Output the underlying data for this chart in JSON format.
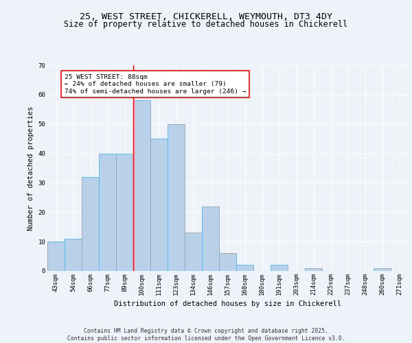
{
  "title1": "25, WEST STREET, CHICKERELL, WEYMOUTH, DT3 4DY",
  "title2": "Size of property relative to detached houses in Chickerell",
  "xlabel": "Distribution of detached houses by size in Chickerell",
  "ylabel": "Number of detached properties",
  "categories": [
    "43sqm",
    "54sqm",
    "66sqm",
    "77sqm",
    "89sqm",
    "100sqm",
    "111sqm",
    "123sqm",
    "134sqm",
    "146sqm",
    "157sqm",
    "168sqm",
    "180sqm",
    "191sqm",
    "203sqm",
    "214sqm",
    "225sqm",
    "237sqm",
    "248sqm",
    "260sqm",
    "271sqm"
  ],
  "values": [
    10,
    11,
    32,
    40,
    40,
    58,
    45,
    50,
    13,
    22,
    6,
    2,
    0,
    2,
    0,
    1,
    0,
    0,
    0,
    1,
    0
  ],
  "bar_color": "#b8d0e8",
  "bar_edge_color": "#6aaed6",
  "bar_width": 1.0,
  "annotation_text": "25 WEST STREET: 88sqm\n← 24% of detached houses are smaller (79)\n74% of semi-detached houses are larger (246) →",
  "annotation_box_color": "white",
  "annotation_box_edge_color": "red",
  "vline_x": 4.5,
  "vline_color": "red",
  "ylim": [
    0,
    70
  ],
  "yticks": [
    0,
    10,
    20,
    30,
    40,
    50,
    60,
    70
  ],
  "background_color": "#eef2f9",
  "footnote": "Contains HM Land Registry data © Crown copyright and database right 2025.\nContains public sector information licensed under the Open Government Licence v3.0.",
  "title_fontsize": 9.5,
  "subtitle_fontsize": 8.5,
  "axis_label_fontsize": 7.5,
  "tick_fontsize": 6.5,
  "annotation_fontsize": 6.8,
  "footnote_fontsize": 5.8
}
